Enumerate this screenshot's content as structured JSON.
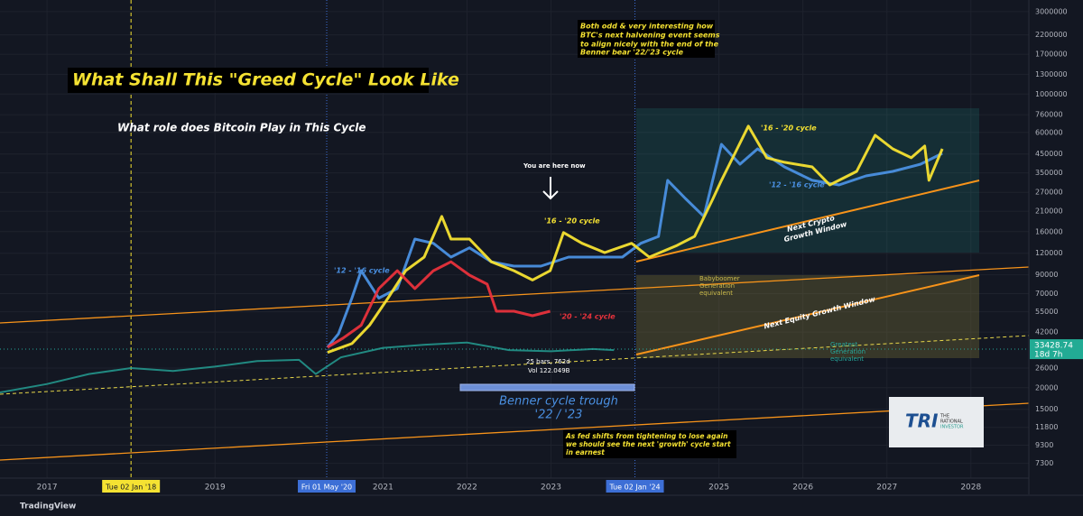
{
  "chart_data": {
    "type": "line",
    "title": "What Shall This \"Greed Cycle\" Look Like",
    "subtitle": "What role does Bitcoin Play in This Cycle",
    "log_scale": true,
    "grid": true,
    "xlim": [
      2016.44,
      2028.69
    ],
    "ylim": [
      6000,
      3500000
    ],
    "xticks": [
      2017,
      {
        "value": 2018.0,
        "label": "Tue 02 Jan '18"
      },
      2019,
      {
        "value": 2020.33,
        "label": "Fri 01 May '20"
      },
      2021,
      2022,
      2023,
      {
        "value": 2024.0,
        "label": "Tue 02 Jan '24"
      },
      2025,
      2026,
      2027,
      2028
    ],
    "yticks": [
      3000000,
      2200000,
      1700000,
      1300000,
      1000000,
      760000,
      600000,
      450000,
      350000,
      270000,
      210000,
      160000,
      120000,
      90000,
      70000,
      55000,
      42000,
      26000,
      20000,
      15000,
      11800,
      9300,
      7300
    ],
    "series": [
      {
        "color": "#26a69a",
        "x": [
          2016.44,
          2017,
          2017.5,
          2018,
          2018.5,
          2019,
          2019.5,
          2020,
          2020.2,
          2020.5,
          2021,
          2021.5,
          2022,
          2022.5,
          2023,
          2023.5,
          2023.75
        ],
        "values": [
          18800,
          21000,
          24000,
          26000,
          25000,
          26500,
          28500,
          29000,
          24000,
          30000,
          34000,
          35500,
          36500,
          33000,
          32500,
          33500,
          33000
        ]
      },
      {
        "name": "'12 - '16 cycle",
        "color": "#4a90e2",
        "x": [
          2020.34,
          2020.47,
          2020.63,
          2020.74,
          2020.95,
          2021.17,
          2021.38,
          2021.6,
          2021.81,
          2022.03,
          2022.29,
          2022.56,
          2022.88,
          2023.21,
          2023.53,
          2023.85,
          2024.07,
          2024.28,
          2024.39,
          2024.6,
          2024.82,
          2025.03,
          2025.25,
          2025.46,
          2025.78,
          2026.11,
          2026.43,
          2026.75,
          2027.07,
          2027.4,
          2027.66
        ],
        "values": [
          34300,
          41000,
          66000,
          95000,
          66000,
          74900,
          145000,
          137000,
          114000,
          129000,
          107000,
          101000,
          101000,
          114000,
          114000,
          114000,
          137000,
          150000,
          317000,
          249000,
          196000,
          512000,
          393000,
          482000,
          379000,
          317000,
          298000,
          336000,
          357000,
          393000,
          454000
        ]
      },
      {
        "name": "'16 - '20 cycle",
        "color": "#f5e232",
        "x": [
          2020.34,
          2020.63,
          2020.84,
          2021.06,
          2021.27,
          2021.49,
          2021.7,
          2021.81,
          2022.03,
          2022.29,
          2022.56,
          2022.78,
          2022.99,
          2023.15,
          2023.37,
          2023.64,
          2023.96,
          2024.17,
          2024.5,
          2024.71,
          2024.93,
          2025.03,
          2025.19,
          2025.35,
          2025.57,
          2025.78,
          2026.11,
          2026.32,
          2026.64,
          2026.86,
          2027.07,
          2027.29,
          2027.45,
          2027.5,
          2027.66
        ],
        "values": [
          32000,
          36000,
          46000,
          66000,
          95000,
          114000,
          196000,
          145000,
          145000,
          107000,
          95000,
          84000,
          95000,
          158000,
          137000,
          121000,
          137000,
          114000,
          133000,
          150000,
          249000,
          317000,
          454000,
          652000,
          428000,
          403000,
          379000,
          298000,
          357000,
          578000,
          482000,
          428000,
          500000,
          317000,
          482000
        ]
      },
      {
        "name": "'20 - '24 cycle",
        "color": "#e8323c",
        "x": [
          2020.34,
          2020.52,
          2020.74,
          2020.95,
          2021.17,
          2021.38,
          2021.6,
          2021.81,
          2022.03,
          2022.24,
          2022.35,
          2022.56,
          2022.78,
          2022.99
        ],
        "values": [
          34300,
          38600,
          46000,
          74900,
          95000,
          74900,
          95000,
          107000,
          89600,
          79500,
          55400,
          55400,
          52200,
          55400
        ]
      }
    ],
    "last_price": 33428.74,
    "countdown": "18d 7h",
    "annotations": {
      "halving_note": [
        "Both odd & very interesting how",
        "BTC's next halvening event seems",
        "to align nicely with the end of the",
        "Benner bear '22/'23 cycle"
      ],
      "you_are_here": "You are here now",
      "crypto_window": [
        "Next Crypto",
        "Growth Window"
      ],
      "equity_window": "Next Equity Growth Window",
      "babyboomer": [
        "Babyboomer",
        "Generation",
        "equivalent"
      ],
      "greatest": [
        "Greatest",
        "Generation",
        "equivalent"
      ],
      "benner": [
        "Benner cycle trough",
        "'22  / '23"
      ],
      "fed_note": [
        "As fed shifts from tightening to lose again",
        "we should see the next 'growth' cycle start",
        "in earnest"
      ],
      "bars": "25 bars, 762d",
      "volume": "Vol 122.049B"
    },
    "logo": {
      "mark": "TRI",
      "text": [
        "THE",
        "RATIONAL",
        "INVESTOR"
      ]
    },
    "footer": "TradingView"
  }
}
